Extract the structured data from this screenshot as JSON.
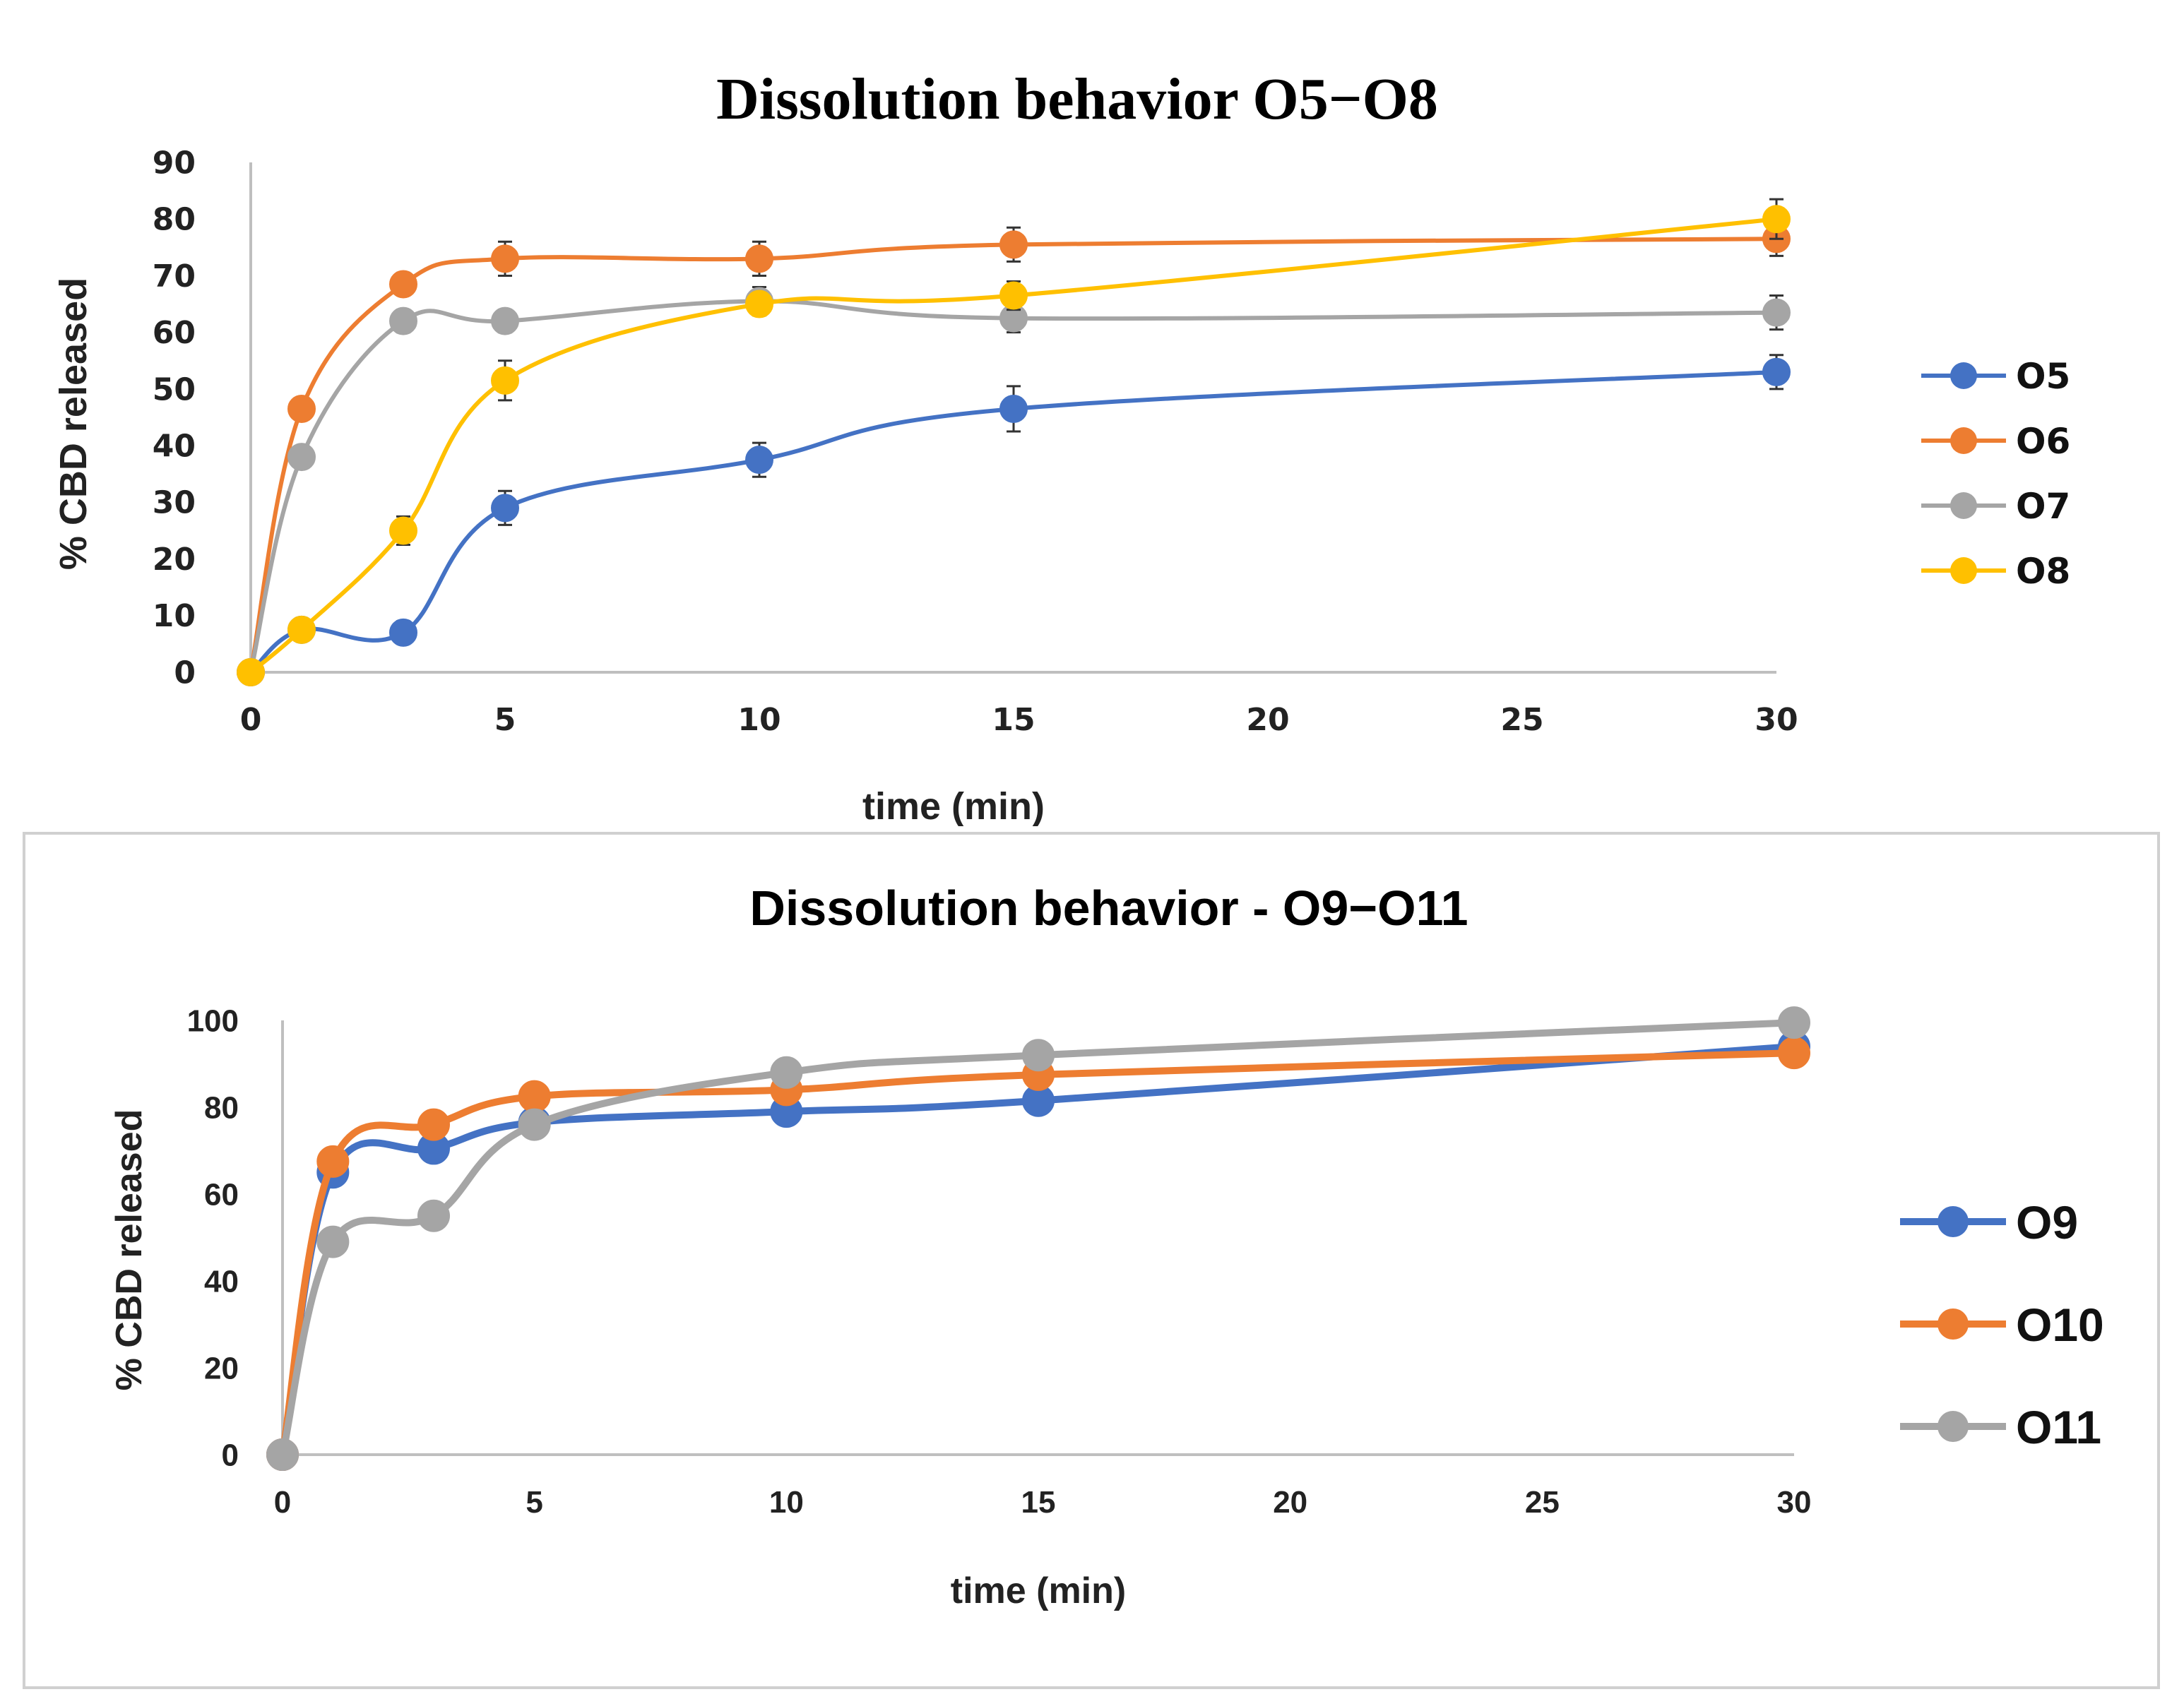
{
  "chart_data": [
    {
      "type": "line",
      "title": "Dissolution behavior O5−O8",
      "xlabel": "time (min)",
      "ylabel": "% CBD released",
      "xlim": [
        0,
        30
      ],
      "ylim": [
        0,
        90
      ],
      "xticks": [
        0,
        5,
        10,
        15,
        20,
        25,
        30
      ],
      "yticks": [
        0,
        10,
        20,
        30,
        40,
        50,
        60,
        70,
        80,
        90
      ],
      "x": [
        0,
        1,
        3,
        5,
        10,
        15,
        30
      ],
      "legend_position": "right",
      "series": [
        {
          "name": "O5",
          "color": "#4472C4",
          "values": [
            0,
            7.5,
            7,
            29,
            37.5,
            46.5,
            53
          ],
          "errors": [
            0,
            1.5,
            2,
            3,
            3,
            4,
            3
          ]
        },
        {
          "name": "O6",
          "color": "#ED7D31",
          "values": [
            0,
            46.5,
            68.5,
            73,
            73,
            75.5,
            76.5
          ],
          "errors": [
            0,
            1.5,
            2,
            3,
            3,
            3,
            3
          ]
        },
        {
          "name": "O7",
          "color": "#A5A5A5",
          "values": [
            0,
            38,
            62,
            62,
            65.5,
            62.5,
            63.5
          ],
          "errors": [
            0,
            1.5,
            2,
            2,
            2.5,
            2.5,
            3
          ]
        },
        {
          "name": "O8",
          "color": "#FFC000",
          "values": [
            0,
            7.5,
            25,
            51.5,
            65,
            66.5,
            80
          ],
          "errors": [
            0,
            1.5,
            2.5,
            3.5,
            2,
            2.5,
            3.5
          ]
        }
      ]
    },
    {
      "type": "line",
      "title": "Dissolution behavior - O9−O11",
      "xlabel": "time (min)",
      "ylabel": "% CBD released",
      "xlim": [
        0,
        30
      ],
      "ylim": [
        0,
        100
      ],
      "xticks": [
        0,
        5,
        10,
        15,
        20,
        25,
        30
      ],
      "yticks": [
        0,
        20,
        40,
        60,
        80,
        100
      ],
      "x": [
        0,
        1,
        3,
        5,
        10,
        15,
        30
      ],
      "legend_position": "right",
      "series": [
        {
          "name": "O9",
          "color": "#4472C4",
          "values": [
            0,
            65,
            70.5,
            76.5,
            79,
            81.5,
            94
          ],
          "errors": [
            0,
            2.5,
            2,
            2,
            2,
            2,
            2
          ]
        },
        {
          "name": "O10",
          "color": "#ED7D31",
          "values": [
            0,
            67.5,
            76,
            82.5,
            84,
            87.5,
            92.5
          ],
          "errors": [
            0,
            2.5,
            2.5,
            2,
            2,
            2,
            2
          ]
        },
        {
          "name": "O11",
          "color": "#A5A5A5",
          "values": [
            0,
            49,
            55,
            76,
            88,
            92,
            99.5
          ],
          "errors": [
            0,
            2,
            2,
            2,
            2.5,
            2,
            2
          ]
        }
      ]
    }
  ]
}
